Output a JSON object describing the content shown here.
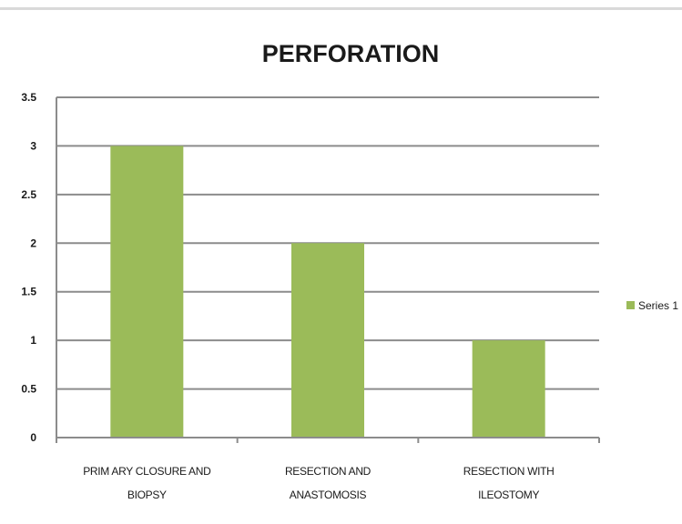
{
  "chart_data": {
    "type": "bar",
    "title": "PERFORATION",
    "categories": [
      [
        "PRIM ARY CLOSURE AND",
        "BIOPSY"
      ],
      [
        "RESECTION  AND",
        "ANASTOMOSIS"
      ],
      [
        "RESECTION WITH",
        "ILEOSTOMY"
      ]
    ],
    "series": [
      {
        "name": "Series 1",
        "values": [
          3,
          2,
          1
        ],
        "color": "#9bbb59"
      }
    ],
    "y_ticks": [
      "0",
      "0.5",
      "1",
      "1.5",
      "2",
      "2.5",
      "3",
      "3.5"
    ],
    "ylim": [
      0,
      3.5
    ],
    "grid": true,
    "legend_position": "right",
    "gridline_color": "#8c8c8c"
  }
}
